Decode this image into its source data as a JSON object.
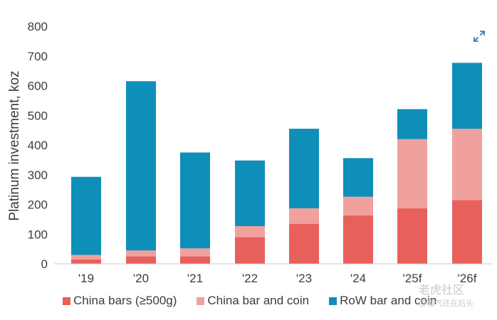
{
  "chart_data": {
    "type": "bar",
    "stacked": true,
    "categories": [
      "'19",
      "'20",
      "'21",
      "'22",
      "'23",
      "'24",
      "'25f",
      "'26f"
    ],
    "series": [
      {
        "name": "China bars (≥500g)",
        "color": "#e8605c",
        "values": [
          15,
          25,
          25,
          90,
          135,
          163,
          187,
          215
        ]
      },
      {
        "name": "China bar and coin",
        "color": "#f0a19d",
        "values": [
          15,
          20,
          27,
          37,
          52,
          63,
          233,
          240
        ]
      },
      {
        "name": "RoW bar and coin",
        "color": "#0e8fb9",
        "values": [
          263,
          570,
          323,
          221,
          268,
          130,
          101,
          222
        ]
      }
    ],
    "ylabel": "Platinum investment, koz",
    "xlabel": "",
    "ylim": [
      0,
      800
    ],
    "yticks": [
      0,
      100,
      200,
      300,
      400,
      500,
      600,
      700,
      800
    ],
    "grid": false,
    "legend_position": "bottom"
  },
  "icons": {
    "expand": "expand-arrows-icon"
  },
  "watermark": {
    "line1": "老虎社区",
    "line2": "@榴气还在后头"
  }
}
